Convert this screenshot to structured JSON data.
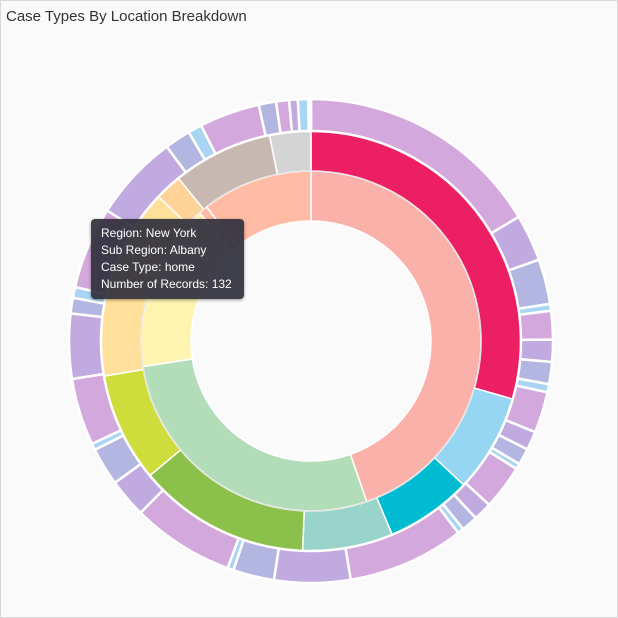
{
  "title": "Case Types By Location Breakdown",
  "tooltip": {
    "region": "Region: New York",
    "sub_region": "Sub Region: Albany",
    "case_type": "Case Type: home",
    "records": "Number of Records: 132"
  },
  "chart_data": {
    "type": "sunburst",
    "title": "Case Types By Location Breakdown",
    "rings": [
      {
        "level": "region",
        "segments": [
          {
            "value": 129.8,
            "color": "#f9b1aa"
          },
          {
            "value": 81.1,
            "color": "#b3dcb8"
          },
          {
            "value": 46.5,
            "color": "#fff3b2"
          },
          {
            "value": 2.5,
            "color": "#ffbba3"
          },
          {
            "value": 30.6,
            "color": "#ffbba3"
          }
        ]
      },
      {
        "level": "sub_region",
        "segments": [
          {
            "value": 85.6,
            "color": "#ec1f64"
          },
          {
            "value": 22.0,
            "color": "#96d6f3"
          },
          {
            "value": 19.3,
            "color": "#00bcd3"
          },
          {
            "value": 20.2,
            "color": "#99d4cb"
          },
          {
            "value": 38.6,
            "color": "#8bc14b"
          },
          {
            "value": 24.4,
            "color": "#cfdd3c"
          },
          {
            "value": 42.8,
            "color": "#ffe09b"
          },
          {
            "value": 6.0,
            "color": "#ffd398"
          },
          {
            "value": 22.4,
            "color": "#c7b8b2"
          },
          {
            "value": 9.2,
            "color": "#d4d4d4"
          }
        ]
      },
      {
        "level": "case_type",
        "segments": [
          {
            "value": 56.9,
            "color": "#d3a8dd"
          },
          {
            "value": 10.8,
            "color": "#c1aadf"
          },
          {
            "value": 10.4,
            "color": "#b3b6e0"
          },
          {
            "value": 1.6,
            "color": "#a9d5f3"
          },
          {
            "value": 6.6,
            "color": "#d3a8dd"
          },
          {
            "value": 5.1,
            "color": "#c1aadf"
          },
          {
            "value": 5.1,
            "color": "#b3b6e0"
          },
          {
            "value": 1.9,
            "color": "#a9d5f3"
          },
          {
            "value": 9.5,
            "color": "#d3a8dd"
          },
          {
            "value": 4.3,
            "color": "#c1aadf"
          },
          {
            "value": 3.8,
            "color": "#b3b6e0"
          },
          {
            "value": 1.3,
            "color": "#a9d5f3"
          },
          {
            "value": 10.3,
            "color": "#d3a8dd"
          },
          {
            "value": 4.3,
            "color": "#c1aadf"
          },
          {
            "value": 3.8,
            "color": "#b3b6e0"
          },
          {
            "value": 1.4,
            "color": "#a9d5f3"
          },
          {
            "value": 27.0,
            "color": "#d3a8dd"
          },
          {
            "value": 17.6,
            "color": "#c1aadf"
          },
          {
            "value": 9.5,
            "color": "#b3b6e0"
          },
          {
            "value": 1.4,
            "color": "#a9d5f3"
          },
          {
            "value": 23.7,
            "color": "#d3a8dd"
          },
          {
            "value": 9.0,
            "color": "#c1aadf"
          },
          {
            "value": 8.8,
            "color": "#b3b6e0"
          },
          {
            "value": 1.5,
            "color": "#a9d5f3"
          },
          {
            "value": 15.5,
            "color": "#d3a8dd"
          },
          {
            "value": 15.0,
            "color": "#c1aadf"
          },
          {
            "value": 3.6,
            "color": "#b3b6e0"
          },
          {
            "value": 2.5,
            "color": "#a9d5f3"
          },
          {
            "value": 19.0,
            "color": "#d3a8dd"
          },
          {
            "value": 20.0,
            "color": "#c1aadf"
          },
          {
            "value": 6.0,
            "color": "#b3b6e0"
          },
          {
            "value": 3.2,
            "color": "#a9d5f3"
          },
          {
            "value": 14.0,
            "color": "#d3a8dd"
          },
          {
            "value": 4.0,
            "color": "#b3b6e0"
          },
          {
            "value": 3.0,
            "color": "#d3a8dd"
          },
          {
            "value": 2.0,
            "color": "#c1aadf"
          },
          {
            "value": 2.4,
            "color": "#a9d5f3"
          },
          {
            "value": 0.6,
            "color": "#c1aadf"
          }
        ]
      }
    ],
    "highlighted": {
      "region": "New York",
      "sub_region": "Albany",
      "case_type": "home",
      "records": 132
    }
  }
}
